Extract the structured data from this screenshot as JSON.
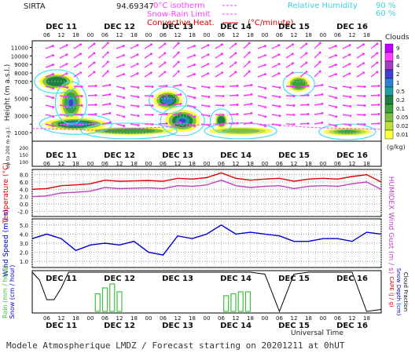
{
  "header": {
    "station": "SIRTA",
    "coords_fragment": "94.69347",
    "isotherm_label": "0°C isotherm",
    "snow_rain_label": "Snow-Rain Limit",
    "convective_label": "Convective Heat.",
    "convective_unit": "(°C/minute)",
    "rh_label": "Relative Humidity",
    "rh_90": "90 %",
    "rh_60": "60 %"
  },
  "time_axis": {
    "days": [
      "DEC 11",
      "DEC 12",
      "DEC 13",
      "DEC 14",
      "DEC 15",
      "DEC 16"
    ],
    "hours": [
      "06",
      "12",
      "18",
      "00",
      "06",
      "12",
      "18",
      "00",
      "06",
      "12",
      "18",
      "00",
      "06",
      "12",
      "18",
      "00",
      "06",
      "12",
      "18",
      "00",
      "06",
      "12",
      "18"
    ],
    "xlabel": "Universal Time"
  },
  "footer": "Modele Atmospherique LMDZ / Forecast starting on 20201211 at 0hUT",
  "chart_data": [
    {
      "type": "heatmap",
      "title": "",
      "ylabel": "Height (m a.s.l.)",
      "yticks": [
        1000,
        2000,
        3000,
        4000,
        5000,
        6000,
        7000,
        8000,
        9000,
        10000,
        11000
      ],
      "ytick_labels": [
        "1000",
        "",
        "3000",
        "",
        "5000",
        "",
        "7000",
        "8000",
        "9000",
        "10000",
        "11000"
      ],
      "ylim": [
        0,
        11500
      ],
      "legend_title": "Clouds",
      "legend_unit": "(g/kg)",
      "legend_levels": [
        "9",
        "6",
        "4",
        "2",
        "1",
        "0.5",
        "0.2",
        "0.1",
        "0.05",
        "0.02",
        "0.01"
      ],
      "legend_colors": [
        "#c000ff",
        "#ff40ff",
        "#a040c0",
        "#4040d0",
        "#3080d0",
        "#20a0a0",
        "#208040",
        "#40a040",
        "#80c040",
        "#c0e040",
        "#ffff40"
      ]
    },
    {
      "type": "line",
      "ylabel": "Up to 200 m a.g.l.",
      "yticks": [
        0,
        50,
        100,
        150,
        200
      ],
      "ytick_labels": [
        "100",
        "150",
        "200"
      ]
    },
    {
      "type": "line",
      "ylabel": "Temperature (°C)",
      "ylabel2": "HUMIDEX",
      "ytick_labels": [
        "8.0",
        "6.0",
        "4.0",
        "2.0",
        "0.0",
        "-2.0"
      ],
      "ylim": [
        -3,
        9
      ],
      "series": [
        {
          "name": "Temperature",
          "color": "#dd0000",
          "x": [
            0,
            6,
            12,
            18,
            24,
            30,
            36,
            42,
            48,
            54,
            60,
            66,
            72,
            78,
            84,
            90,
            96,
            102,
            108,
            114,
            120,
            126,
            132,
            138,
            144
          ],
          "values": [
            4.0,
            4.2,
            5.0,
            5.2,
            5.5,
            6.5,
            6.2,
            6.3,
            6.4,
            6.2,
            7.0,
            6.8,
            7.2,
            8.5,
            7.0,
            6.5,
            6.8,
            7.0,
            6.2,
            6.8,
            7.0,
            6.8,
            7.5,
            8.0,
            6.0
          ]
        },
        {
          "name": "Humidex",
          "color": "#c040c0",
          "x": [
            0,
            6,
            12,
            18,
            24,
            30,
            36,
            42,
            48,
            54,
            60,
            66,
            72,
            78,
            84,
            90,
            96,
            102,
            108,
            114,
            120,
            126,
            132,
            138,
            144
          ],
          "values": [
            2.0,
            2.2,
            3.0,
            3.2,
            3.5,
            4.5,
            4.2,
            4.3,
            4.4,
            4.2,
            5.0,
            4.8,
            5.2,
            6.5,
            5.0,
            4.5,
            4.8,
            5.0,
            4.2,
            4.8,
            5.0,
            4.8,
            5.5,
            6.0,
            4.0
          ]
        }
      ]
    },
    {
      "type": "line",
      "ylabel": "Wind Speed (m / s)",
      "ylabel2": "Wind Gust (m / s)",
      "ytick_labels": [
        "5.0",
        "4.0",
        "3.0",
        "2.0",
        "1.0"
      ],
      "ylim": [
        0.5,
        5.5
      ],
      "series": [
        {
          "name": "Wind Speed",
          "color": "#0000cc",
          "x": [
            0,
            6,
            12,
            18,
            24,
            30,
            36,
            42,
            48,
            54,
            60,
            66,
            72,
            78,
            84,
            90,
            96,
            102,
            108,
            114,
            120,
            126,
            132,
            138,
            144
          ],
          "values": [
            3.5,
            4.0,
            3.5,
            2.2,
            2.8,
            3.0,
            2.8,
            3.2,
            2.0,
            1.7,
            3.8,
            3.5,
            4.0,
            5.0,
            4.0,
            4.2,
            4.0,
            3.8,
            3.2,
            3.2,
            3.5,
            3.5,
            3.2,
            4.2,
            4.0
          ]
        }
      ]
    },
    {
      "type": "bar",
      "ylabel": "Rain (mm / hour)",
      "ylabel_b": "Snow (cm / hour)",
      "ylabel2": "CAPE (J / g)",
      "ylabel2_b": "Snow Depth (cm)",
      "ylabel2_c": "Cloud Fraction",
      "bars_color": "#40c040",
      "x": [
        27,
        30,
        33,
        36,
        80,
        83,
        86,
        89
      ],
      "values": [
        0.45,
        0.6,
        0.7,
        0.5,
        0.4,
        0.45,
        0.5,
        0.5
      ],
      "ylim": [
        0,
        1
      ],
      "cloud_fraction": {
        "color": "#000000",
        "x": [
          0,
          3,
          6,
          9,
          12,
          15,
          18,
          21,
          24,
          30,
          36,
          42,
          48,
          54,
          60,
          66,
          72,
          78,
          84,
          90,
          96,
          102,
          108,
          114,
          120,
          126,
          132,
          138,
          144
        ],
        "values": [
          1.0,
          0.8,
          0.3,
          0.3,
          0.6,
          1.0,
          1.0,
          1.0,
          1.0,
          1.0,
          1.0,
          1.0,
          1.0,
          1.0,
          1.0,
          1.0,
          1.0,
          1.0,
          1.0,
          1.0,
          0.95,
          0.0,
          0.95,
          1.0,
          1.0,
          1.0,
          1.0,
          0.0,
          0.05
        ]
      }
    }
  ]
}
